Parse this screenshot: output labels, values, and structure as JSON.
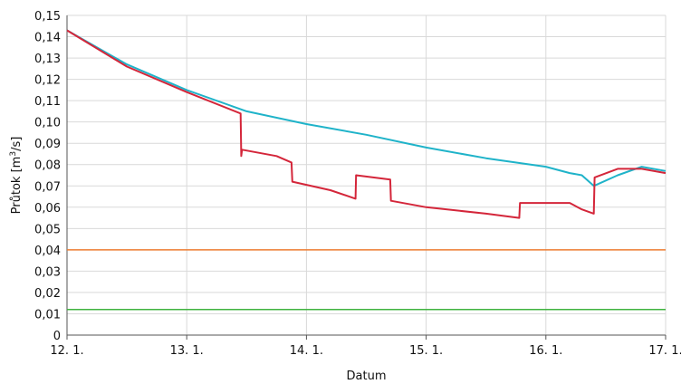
{
  "chart_data": {
    "type": "line",
    "title": "",
    "xlabel": "Datum",
    "ylabel": "Průtok [m³/s]",
    "ylabel_parts": {
      "before": "Průtok [m",
      "sup": "3",
      "after": "/s]"
    },
    "grid": true,
    "legend": "none",
    "x_domain": [
      "12. 1.",
      "17. 1."
    ],
    "x_ticks": [
      "12. 1.",
      "13. 1.",
      "14. 1.",
      "15. 1.",
      "16. 1.",
      "17. 1."
    ],
    "ylim": [
      0,
      0.15
    ],
    "y_ticks": [
      {
        "value": 0,
        "label": "0"
      },
      {
        "value": 0.01,
        "label": "0,01"
      },
      {
        "value": 0.02,
        "label": "0,02"
      },
      {
        "value": 0.03,
        "label": "0,03"
      },
      {
        "value": 0.04,
        "label": "0,04"
      },
      {
        "value": 0.05,
        "label": "0,05"
      },
      {
        "value": 0.06,
        "label": "0,06"
      },
      {
        "value": 0.07,
        "label": "0,07"
      },
      {
        "value": 0.08,
        "label": "0,08"
      },
      {
        "value": 0.09,
        "label": "0,09"
      },
      {
        "value": 0.1,
        "label": "0,10"
      },
      {
        "value": 0.11,
        "label": "0,11"
      },
      {
        "value": 0.12,
        "label": "0,12"
      },
      {
        "value": 0.13,
        "label": "0,13"
      },
      {
        "value": 0.14,
        "label": "0,14"
      },
      {
        "value": 0.15,
        "label": "0,15"
      }
    ],
    "series": [
      {
        "color": "#1fb3c9",
        "x": [
          "12. 1. 00:00",
          "12. 1. 12:00",
          "13. 1. 00:00",
          "13. 1. 12:00",
          "14. 1. 00:00",
          "14. 1. 12:00",
          "15. 1. 00:00",
          "15. 1. 12:00",
          "16. 1. 00:00",
          "16. 1. 04:48",
          "16. 1. 07:12",
          "16. 1. 09:36",
          "16. 1. 14:24",
          "16. 1. 19:12",
          "17. 1. 00:00"
        ],
        "y": [
          0.143,
          0.127,
          0.115,
          0.105,
          0.099,
          0.094,
          0.088,
          0.083,
          0.079,
          0.076,
          0.075,
          0.07,
          0.075,
          0.079,
          0.077
        ]
      },
      {
        "color": "#d4263a",
        "x": [
          "12. 1. 00:00",
          "12. 1. 12:00",
          "13. 1. 00:00",
          "13. 1. 10:48",
          "13. 1. 10:56",
          "13. 1. 11:06",
          "13. 1. 18:00",
          "13. 1. 21:00",
          "13. 1. 21:10",
          "14. 1. 04:48",
          "14. 1. 09:50",
          "14. 1. 09:57",
          "14. 1. 16:48",
          "14. 1. 16:56",
          "15. 1. 00:00",
          "15. 1. 12:00",
          "15. 1. 18:40",
          "15. 1. 18:48",
          "16. 1. 04:48",
          "16. 1. 07:12",
          "16. 1. 09:36",
          "16. 1. 09:46",
          "16. 1. 14:24",
          "16. 1. 19:12",
          "17. 1. 00:00"
        ],
        "y": [
          0.143,
          0.126,
          0.114,
          0.104,
          0.084,
          0.087,
          0.084,
          0.081,
          0.072,
          0.068,
          0.064,
          0.075,
          0.073,
          0.063,
          0.06,
          0.057,
          0.055,
          0.062,
          0.062,
          0.059,
          0.057,
          0.074,
          0.078,
          0.078,
          0.076
        ]
      }
    ],
    "reference_lines": [
      {
        "value": 0.04,
        "color": "#ee7d31"
      },
      {
        "value": 0.012,
        "color": "#3fb33f"
      }
    ]
  }
}
